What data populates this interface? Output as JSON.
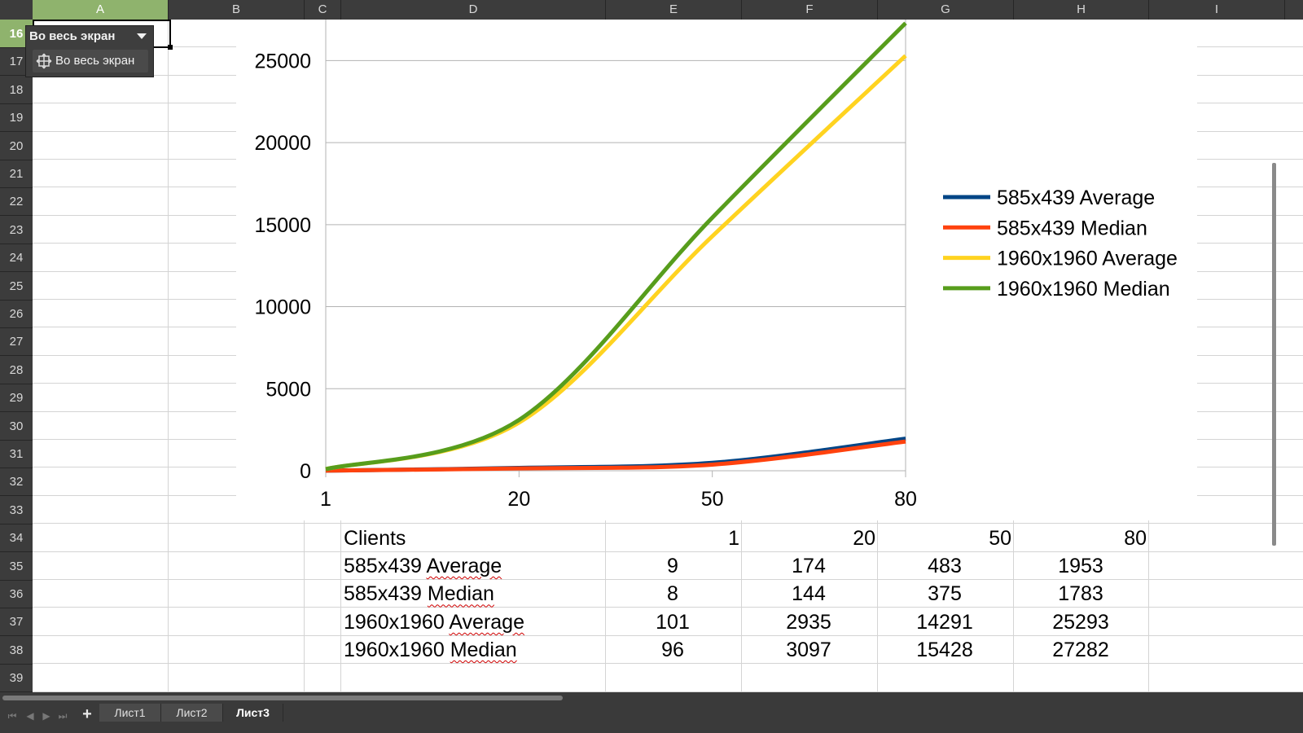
{
  "columns": [
    "A",
    "B",
    "C",
    "D",
    "E",
    "F",
    "G",
    "H",
    "I"
  ],
  "selected_column": "A",
  "rows": [
    "16",
    "17",
    "18",
    "19",
    "20",
    "21",
    "22",
    "23",
    "24",
    "25",
    "26",
    "27",
    "28",
    "29",
    "30",
    "31",
    "32",
    "33",
    "34",
    "35",
    "36",
    "37",
    "38",
    "39"
  ],
  "selected_row": "16",
  "fullscreen_toolbar": {
    "title": "Во весь экран",
    "button_label": "Во весь экран",
    "icon": "fullscreen-icon"
  },
  "chart_data": {
    "type": "line",
    "title": "",
    "xlabel": "",
    "ylabel": "",
    "categories": [
      "1",
      "20",
      "50",
      "80"
    ],
    "ylim": [
      0,
      27500
    ],
    "yticks": [
      "0",
      "5000",
      "10000",
      "15000",
      "20000",
      "25000"
    ],
    "grid": true,
    "legend": "right",
    "series": [
      {
        "name": "585x439 Average",
        "values": [
          9,
          174,
          483,
          1953
        ],
        "color": "#004586"
      },
      {
        "name": "585x439 Median",
        "values": [
          8,
          144,
          375,
          1783
        ],
        "color": "#ff420e"
      },
      {
        "name": "1960x1960 Average",
        "values": [
          101,
          2935,
          14291,
          25293
        ],
        "color": "#ffd320"
      },
      {
        "name": "1960x1960 Median",
        "values": [
          96,
          3097,
          15428,
          27282
        ],
        "color": "#579d1c"
      }
    ]
  },
  "table": {
    "header_label": "Clients",
    "header_values": [
      "1",
      "20",
      "50",
      "80"
    ],
    "rows": [
      {
        "label_a": "585x439",
        "label_b": "Average",
        "values": [
          "9",
          "174",
          "483",
          "1953"
        ]
      },
      {
        "label_a": "585x439",
        "label_b": "Median",
        "values": [
          "8",
          "144",
          "375",
          "1783"
        ]
      },
      {
        "label_a": "1960x1960",
        "label_b": "Average",
        "values": [
          "101",
          "2935",
          "14291",
          "25293"
        ]
      },
      {
        "label_a": "1960x1960",
        "label_b": "Median",
        "values": [
          "96",
          "3097",
          "15428",
          "27282"
        ]
      }
    ]
  },
  "sheet_tabs": [
    "Лист1",
    "Лист2",
    "Лист3"
  ],
  "active_tab": "Лист3"
}
